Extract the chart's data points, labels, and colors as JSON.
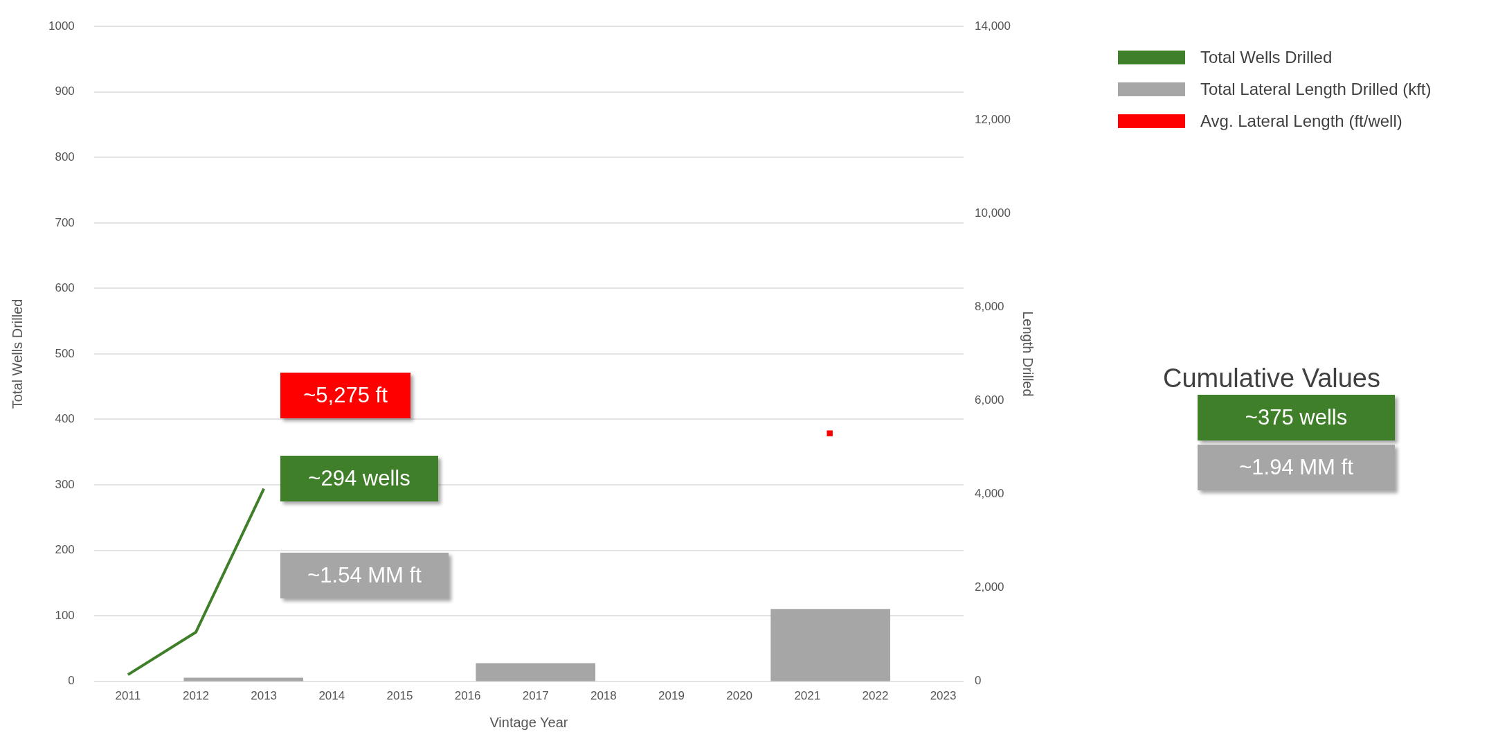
{
  "chart_data": {
    "type": "bar",
    "xlabel": "Vintage Year",
    "ylabel": "Total Wells Drilled",
    "y2label": "Length Drilled",
    "xlim": [
      2010.5,
      2023.3
    ],
    "xticks": [
      2011,
      2012,
      2013,
      2014,
      2015,
      2016,
      2017,
      2018,
      2019,
      2020,
      2021,
      2022,
      2023
    ],
    "ylim": [
      0,
      1000
    ],
    "yticks": [
      0,
      100,
      200,
      300,
      400,
      500,
      600,
      700,
      800,
      900,
      1000
    ],
    "y2lim": [
      0,
      14000
    ],
    "y2ticks": [
      0,
      {
        "value": 2000,
        "label": "2,000"
      },
      {
        "value": 4000,
        "label": "4,000"
      },
      {
        "value": 6000,
        "label": "6,000"
      },
      {
        "value": 8000,
        "label": "8,000"
      },
      {
        "value": 10000,
        "label": "10,000"
      },
      {
        "value": 12000,
        "label": "12,000"
      },
      {
        "value": 14000,
        "label": "14,000"
      }
    ],
    "series": [
      {
        "name": "Total Wells Drilled",
        "type": "line",
        "color": "#3f7f2a",
        "x": [
          2011,
          2012,
          2013
        ],
        "values": [
          10,
          75,
          294
        ]
      },
      {
        "name": "Total Lateral Length Drilled (kft)",
        "axis": "y2",
        "color": "#a6a6a6",
        "x": [
          2012.7,
          2017.0,
          2021.34
        ],
        "values": [
          70,
          380,
          1540
        ]
      },
      {
        "name": "Avg. Lateral Length (ft/well)",
        "type": "scatter",
        "axis": "y2",
        "marker": "square",
        "color": "#ff0000",
        "x": [
          2021.33
        ],
        "values": [
          5300
        ]
      }
    ],
    "annotations": [
      "~5,275 ft",
      "~294 wells",
      "~1.54 MM ft",
      "Cumulative Values",
      "~375 wells",
      "~1.94 MM ft"
    ],
    "grid": "y",
    "legend": "right"
  }
}
